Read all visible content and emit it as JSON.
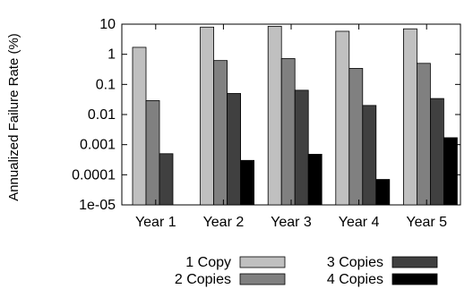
{
  "chart_data": {
    "type": "bar",
    "title": "",
    "ylabel": "Annualized Failure Rate (%)",
    "xlabel": "",
    "y_scale": "log",
    "ylim": [
      1e-05,
      10
    ],
    "y_ticks": [
      10,
      1,
      0.1,
      0.01,
      0.001,
      0.0001,
      1e-05
    ],
    "y_tick_labels": [
      "10",
      "1",
      "0.1",
      "0.01",
      "0.001",
      "0.0001",
      "1e-05"
    ],
    "categories": [
      "Year 1",
      "Year 2",
      "Year 3",
      "Year 4",
      "Year 5"
    ],
    "series": [
      {
        "name": "1 Copy",
        "color": "#c0c0c0",
        "values": [
          1.7,
          8.0,
          8.5,
          5.8,
          7.0
        ]
      },
      {
        "name": "2 Copies",
        "color": "#808080",
        "values": [
          0.029,
          0.62,
          0.72,
          0.34,
          0.5
        ]
      },
      {
        "name": "3 Copies",
        "color": "#404040",
        "values": [
          0.0005,
          0.05,
          0.064,
          0.02,
          0.034
        ]
      },
      {
        "name": "4 Copies",
        "color": "#000000",
        "values": [
          null,
          0.0003,
          0.00048,
          7e-05,
          0.0017
        ]
      }
    ],
    "legend_position": "bottom",
    "grid": false
  }
}
